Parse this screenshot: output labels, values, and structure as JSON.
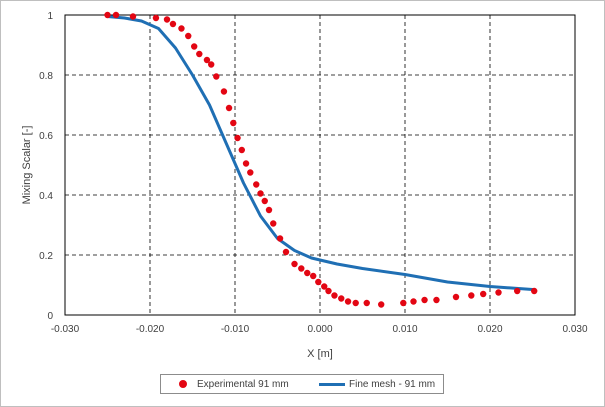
{
  "chart_data": {
    "type": "scatter",
    "xlabel": "X [m]",
    "ylabel": "Mixing Scalar [-]",
    "xlim": [
      -0.03,
      0.03
    ],
    "ylim": [
      0,
      1
    ],
    "x_ticks": [
      -0.03,
      -0.02,
      -0.01,
      0.0,
      0.01,
      0.02,
      0.03
    ],
    "x_tick_labels": [
      "-0.030",
      "-0.020",
      "-0.010",
      "0.000",
      "0.010",
      "0.020",
      "0.030"
    ],
    "y_ticks": [
      0,
      0.2,
      0.4,
      0.6,
      0.8,
      1
    ],
    "y_tick_labels": [
      "0",
      "0.2",
      "0.4",
      "0.6",
      "0.8",
      "1"
    ],
    "grid": true,
    "legend_position": "bottom",
    "series": [
      {
        "name": "Experimental 91 mm",
        "kind": "markers",
        "color": "#e30613",
        "x": [
          -0.025,
          -0.024,
          -0.022,
          -0.0193,
          -0.018,
          -0.0173,
          -0.0163,
          -0.0155,
          -0.0148,
          -0.0142,
          -0.0133,
          -0.0128,
          -0.0122,
          -0.0113,
          -0.0107,
          -0.0102,
          -0.0097,
          -0.0092,
          -0.0087,
          -0.0082,
          -0.0075,
          -0.007,
          -0.0065,
          -0.006,
          -0.0055,
          -0.0047,
          -0.004,
          -0.003,
          -0.0022,
          -0.0015,
          -0.0008,
          -0.0002,
          0.0005,
          0.001,
          0.0017,
          0.0025,
          0.0033,
          0.0042,
          0.0055,
          0.0072,
          0.0098,
          0.011,
          0.0123,
          0.0137,
          0.016,
          0.0178,
          0.0192,
          0.021,
          0.0232,
          0.0252
        ],
        "y": [
          1.0,
          1.0,
          0.995,
          0.99,
          0.985,
          0.97,
          0.955,
          0.93,
          0.895,
          0.87,
          0.85,
          0.835,
          0.795,
          0.745,
          0.69,
          0.64,
          0.59,
          0.55,
          0.505,
          0.475,
          0.435,
          0.405,
          0.38,
          0.35,
          0.305,
          0.255,
          0.21,
          0.17,
          0.155,
          0.14,
          0.13,
          0.11,
          0.095,
          0.08,
          0.065,
          0.055,
          0.045,
          0.04,
          0.04,
          0.035,
          0.04,
          0.045,
          0.05,
          0.05,
          0.06,
          0.065,
          0.07,
          0.075,
          0.08,
          0.08
        ]
      },
      {
        "name": "Fine mesh - 91 mm",
        "kind": "line",
        "color": "#1f6fb4",
        "x": [
          -0.025,
          -0.023,
          -0.021,
          -0.019,
          -0.017,
          -0.015,
          -0.013,
          -0.011,
          -0.009,
          -0.007,
          -0.005,
          -0.003,
          -0.001,
          0.002,
          0.005,
          0.01,
          0.015,
          0.02,
          0.025
        ],
        "y": [
          0.995,
          0.99,
          0.98,
          0.955,
          0.89,
          0.8,
          0.7,
          0.57,
          0.44,
          0.33,
          0.255,
          0.215,
          0.19,
          0.17,
          0.155,
          0.135,
          0.11,
          0.095,
          0.085
        ]
      }
    ]
  }
}
